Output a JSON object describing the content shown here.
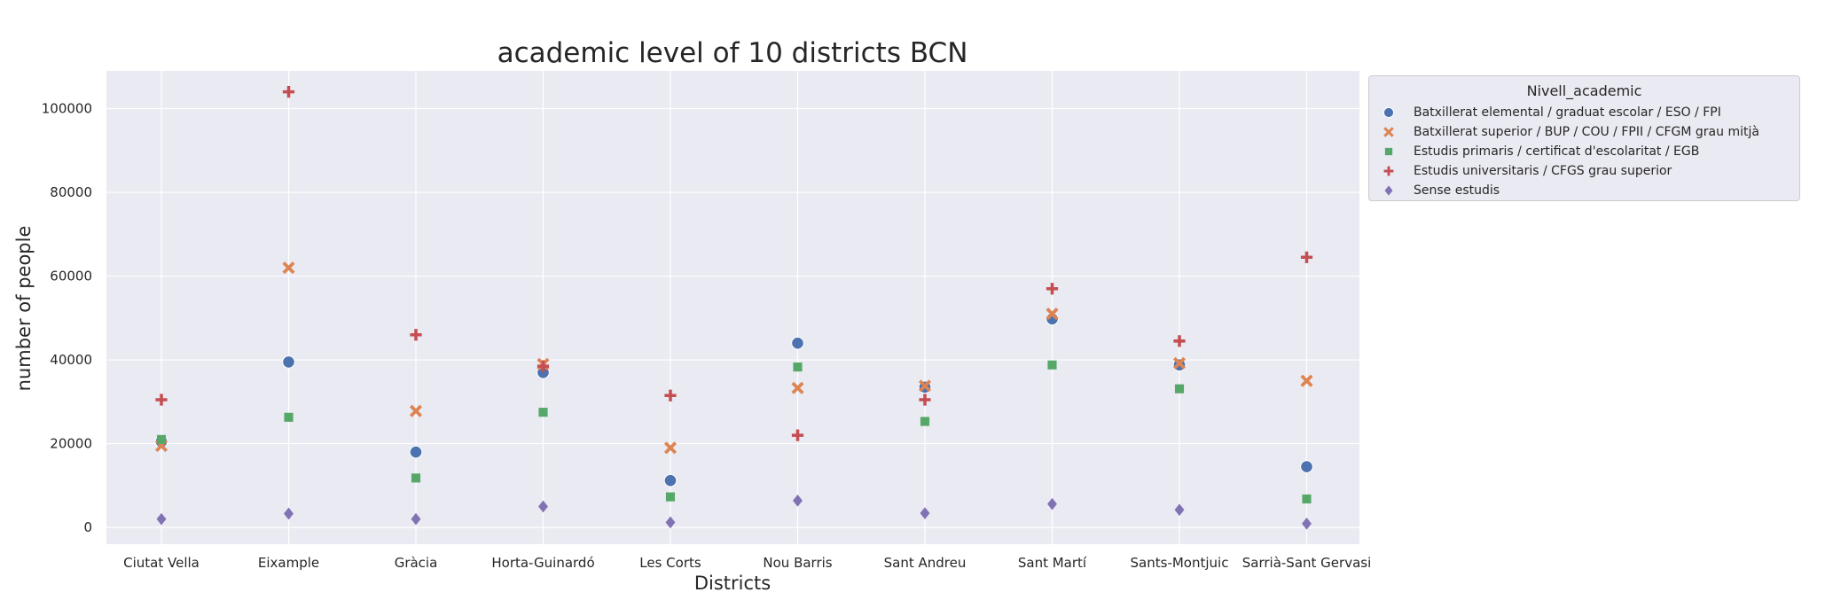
{
  "chart_data": {
    "type": "scatter",
    "title": "academic level of 10 districts BCN",
    "xlabel": "Districts",
    "ylabel": "number of people",
    "ylim": [
      -4000,
      109000
    ],
    "yticks": [
      0,
      20000,
      40000,
      60000,
      80000,
      100000
    ],
    "grid": true,
    "legend_placement": "outside-right",
    "legend_title": "Nivell_academic",
    "categories": [
      "Ciutat Vella",
      "Eixample",
      "Gràcia",
      "Horta-Guinardó",
      "Les Corts",
      "Nou Barris",
      "Sant Andreu",
      "Sant Martí",
      "Sants-Montjuic",
      "Sarrià-Sant Gervasi"
    ],
    "series": [
      {
        "name": "Batxillerat elemental / graduat escolar / ESO / FPI",
        "marker": "circle",
        "color": "#4c72b0",
        "values": [
          20500,
          39500,
          18000,
          37000,
          11200,
          44000,
          33500,
          49800,
          38800,
          14500
        ]
      },
      {
        "name": "Batxillerat superior / BUP / COU / FPII / CFGM grau mitjà",
        "marker": "x",
        "color": "#dd8452",
        "values": [
          19500,
          62000,
          27800,
          39000,
          19000,
          33300,
          33800,
          51000,
          39200,
          35000
        ]
      },
      {
        "name": "Estudis primaris / certificat d'escolaritat / EGB",
        "marker": "square",
        "color": "#55a868",
        "values": [
          21000,
          26300,
          11800,
          27500,
          7300,
          38300,
          25300,
          38800,
          33100,
          6800
        ]
      },
      {
        "name": "Estudis universitaris / CFGS grau superior",
        "marker": "plus",
        "color": "#c44e52",
        "values": [
          30500,
          104000,
          46000,
          38500,
          31500,
          22000,
          30500,
          57000,
          44500,
          64500
        ]
      },
      {
        "name": "Sense estudis",
        "marker": "diamond",
        "color": "#8172b3",
        "values": [
          2000,
          3300,
          2000,
          5000,
          1200,
          6400,
          3400,
          5600,
          4200,
          900
        ]
      }
    ]
  }
}
